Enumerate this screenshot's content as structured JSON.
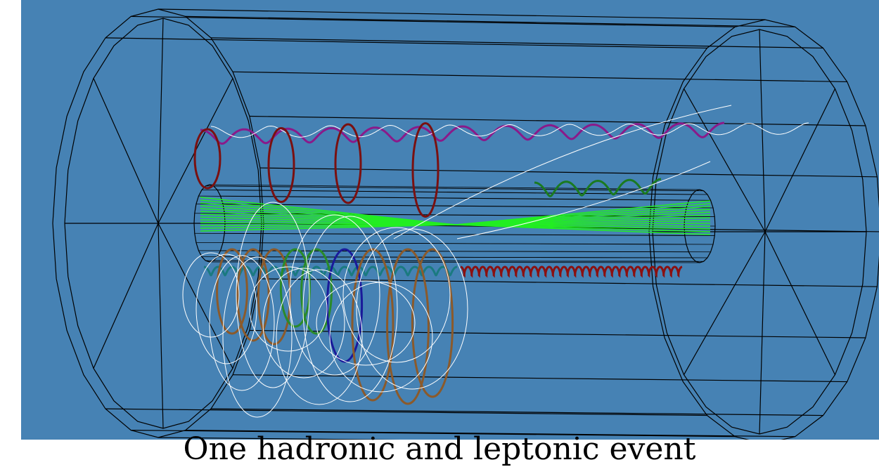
{
  "caption": "One hadronic and leptonic event"
}
